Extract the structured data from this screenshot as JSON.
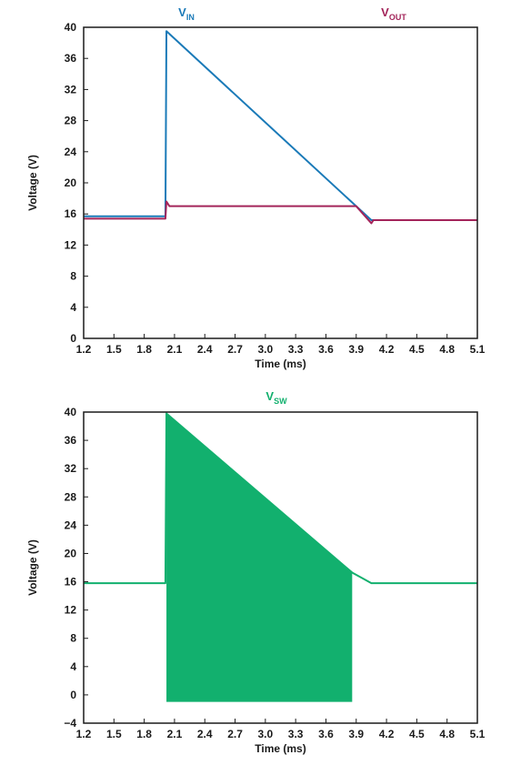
{
  "chart_data": [
    {
      "type": "line",
      "title": "",
      "xlabel": "Time (ms)",
      "ylabel": "Voltage (V)",
      "xlim": [
        1.2,
        5.1
      ],
      "ylim": [
        0,
        40
      ],
      "xticks": [
        "1.2",
        "1.5",
        "1.8",
        "2.1",
        "2.4",
        "2.7",
        "3.0",
        "3.3",
        "3.6",
        "3.9",
        "4.2",
        "4.5",
        "4.8",
        "5.1"
      ],
      "yticks": [
        "0",
        "4",
        "8",
        "12",
        "16",
        "20",
        "24",
        "28",
        "32",
        "36",
        "40"
      ],
      "grid": false,
      "legend_placement": "top",
      "series": [
        {
          "name": "V",
          "subscript": "IN",
          "color": "#1a7ab8",
          "x": [
            1.2,
            2.01,
            2.02,
            4.05,
            5.1
          ],
          "y": [
            15.7,
            15.7,
            39.5,
            15.2,
            15.2
          ]
        },
        {
          "name": "V",
          "subscript": "OUT",
          "color": "#a3245a",
          "x": [
            1.2,
            2.01,
            2.02,
            2.05,
            2.08,
            3.9,
            4.05,
            4.07,
            5.1
          ],
          "y": [
            15.4,
            15.4,
            17.6,
            17.0,
            17.0,
            17.0,
            14.8,
            15.2,
            15.2
          ]
        }
      ]
    },
    {
      "type": "area",
      "title": "",
      "xlabel": "Time (ms)",
      "ylabel": "Voltage (V)",
      "xlim": [
        1.2,
        5.1
      ],
      "ylim": [
        -4,
        40
      ],
      "xticks": [
        "1.2",
        "1.5",
        "1.8",
        "2.1",
        "2.4",
        "2.7",
        "3.0",
        "3.3",
        "3.6",
        "3.9",
        "4.2",
        "4.5",
        "4.8",
        "5.1"
      ],
      "yticks": [
        "−4",
        "0",
        "4",
        "8",
        "12",
        "16",
        "20",
        "24",
        "28",
        "32",
        "36",
        "40"
      ],
      "grid": false,
      "legend_placement": "top",
      "series": [
        {
          "name": "V",
          "subscript": "SW",
          "color": "#12b06e",
          "x": [
            1.2,
            2.01,
            2.02,
            3.86,
            4.05,
            5.1
          ],
          "y": [
            15.8,
            15.8,
            39.8,
            17.3,
            15.8,
            15.8
          ],
          "fill_region": {
            "x_start": 2.02,
            "x_end": 3.86,
            "y_top_start": 39.8,
            "y_top_end": 17.3,
            "y_bottom": -1.0
          }
        }
      ]
    }
  ]
}
